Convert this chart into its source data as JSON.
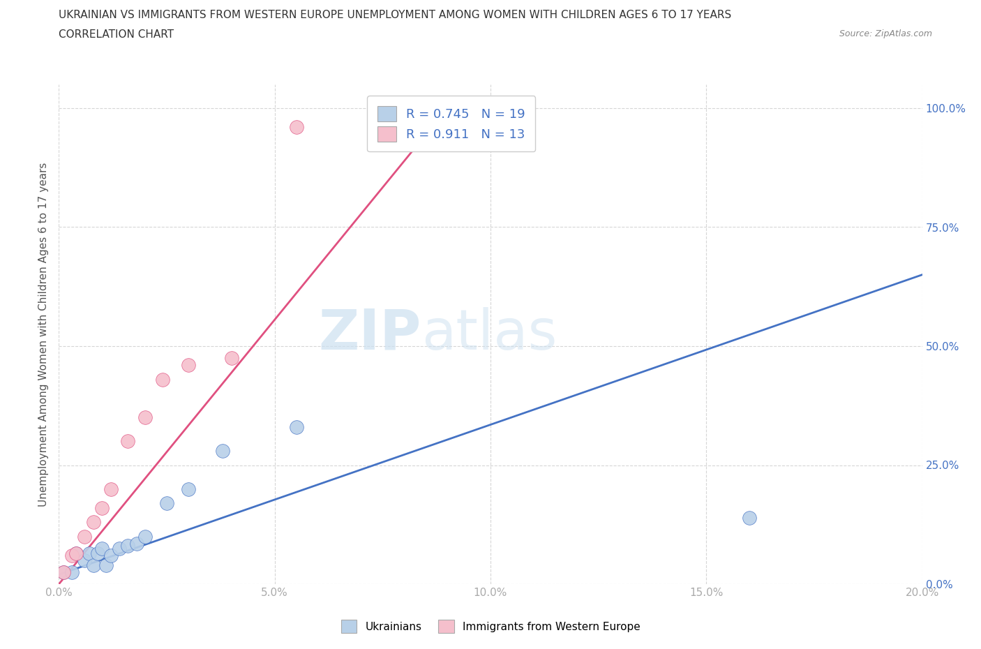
{
  "title_line1": "UKRAINIAN VS IMMIGRANTS FROM WESTERN EUROPE UNEMPLOYMENT AMONG WOMEN WITH CHILDREN AGES 6 TO 17 YEARS",
  "title_line2": "CORRELATION CHART",
  "source": "Source: ZipAtlas.com",
  "ylabel": "Unemployment Among Women with Children Ages 6 to 17 years",
  "watermark_zip": "ZIP",
  "watermark_atlas": "atlas",
  "legend_bottom": [
    "Ukrainians",
    "Immigrants from Western Europe"
  ],
  "R_ukrainian": 0.745,
  "N_ukrainian": 19,
  "R_western": 0.911,
  "N_western": 13,
  "ukrainian_color": "#b8d0e8",
  "western_color": "#f5bfcc",
  "ukrainian_line_color": "#4472c4",
  "western_line_color": "#e05080",
  "xlim": [
    0,
    0.2
  ],
  "ylim": [
    0,
    1.05
  ],
  "xticks": [
    0,
    0.05,
    0.1,
    0.15,
    0.2
  ],
  "yticks": [
    0.0,
    0.25,
    0.5,
    0.75,
    1.0
  ],
  "background_color": "#ffffff",
  "grid_color": "#cccccc",
  "ukrainian_x": [
    0.001,
    0.003,
    0.004,
    0.006,
    0.007,
    0.008,
    0.009,
    0.01,
    0.011,
    0.012,
    0.014,
    0.016,
    0.018,
    0.02,
    0.025,
    0.03,
    0.038,
    0.055,
    0.16
  ],
  "ukrainian_y": [
    0.025,
    0.025,
    0.065,
    0.05,
    0.065,
    0.04,
    0.065,
    0.075,
    0.04,
    0.06,
    0.075,
    0.08,
    0.085,
    0.1,
    0.17,
    0.2,
    0.28,
    0.33,
    0.14
  ],
  "western_x": [
    0.001,
    0.003,
    0.004,
    0.006,
    0.008,
    0.01,
    0.012,
    0.016,
    0.02,
    0.024,
    0.03,
    0.04,
    0.055
  ],
  "western_y": [
    0.025,
    0.06,
    0.065,
    0.1,
    0.13,
    0.16,
    0.2,
    0.3,
    0.35,
    0.43,
    0.46,
    0.475,
    0.96
  ],
  "uk_trendline_x": [
    0.0,
    0.2
  ],
  "uk_trendline_y": [
    0.02,
    0.65
  ],
  "we_trendline_x": [
    0.0,
    0.09
  ],
  "we_trendline_y": [
    0.0,
    1.0
  ]
}
